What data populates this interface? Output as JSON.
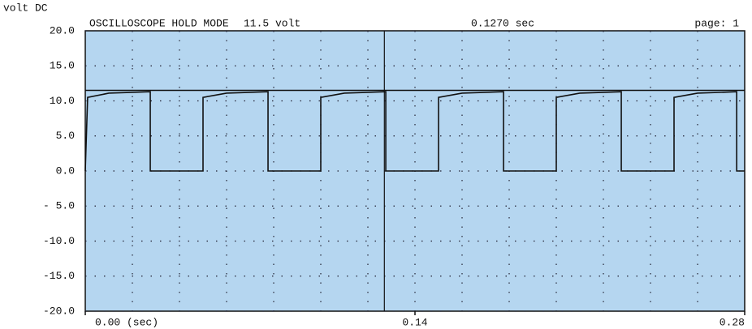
{
  "chart_data": {
    "type": "line",
    "title": "OSCILLOSCOPE HOLD MODE",
    "ylabel": "volt DC",
    "page": "page: 1",
    "cursor_y": {
      "value": 11.5,
      "label": "11.5 volt"
    },
    "cursor_x": {
      "value": 0.127,
      "label": "0.1270 sec"
    },
    "background": "#b5d6f0",
    "xlim": [
      0,
      0.28
    ],
    "ylim": [
      -20,
      20
    ],
    "xticks": [
      {
        "value": 0,
        "label": "0.00 (sec)"
      },
      0.14,
      0.28
    ],
    "yticks": [
      {
        "value": 20,
        "label": "20.0"
      },
      {
        "value": 15,
        "label": "15.0"
      },
      {
        "value": 10,
        "label": "10.0"
      },
      {
        "value": 5,
        "label": "5.0"
      },
      {
        "value": 0,
        "label": "0.0"
      },
      {
        "value": -5,
        "label": "- 5.0"
      },
      {
        "value": -10,
        "label": "-10.0"
      },
      {
        "value": -15,
        "label": "-15.0"
      },
      {
        "value": -20,
        "label": "-20.0"
      }
    ],
    "xgrid": [
      0.02,
      0.04,
      0.06,
      0.08,
      0.1,
      0.12,
      0.14,
      0.16,
      0.18,
      0.2,
      0.22,
      0.24,
      0.26
    ],
    "grid": true,
    "series": [
      {
        "color": "#111111",
        "x": [
          0,
          0.001,
          0.01,
          0.0276,
          0.0276,
          0.05,
          0.05,
          0.06,
          0.0776,
          0.0776,
          0.1,
          0.1,
          0.11,
          0.1276,
          0.1276,
          0.15,
          0.15,
          0.16,
          0.1776,
          0.1776,
          0.2,
          0.2,
          0.21,
          0.2276,
          0.2276,
          0.25,
          0.25,
          0.26,
          0.2766,
          0.2766,
          0.28
        ],
        "values": [
          0,
          10.5,
          11.1,
          11.3,
          0,
          0,
          10.5,
          11.1,
          11.3,
          0,
          0,
          10.5,
          11.1,
          11.3,
          0,
          0,
          10.5,
          11.1,
          11.3,
          0,
          0,
          10.5,
          11.1,
          11.3,
          0,
          0,
          10.5,
          11.1,
          11.3,
          0,
          0
        ]
      }
    ]
  }
}
